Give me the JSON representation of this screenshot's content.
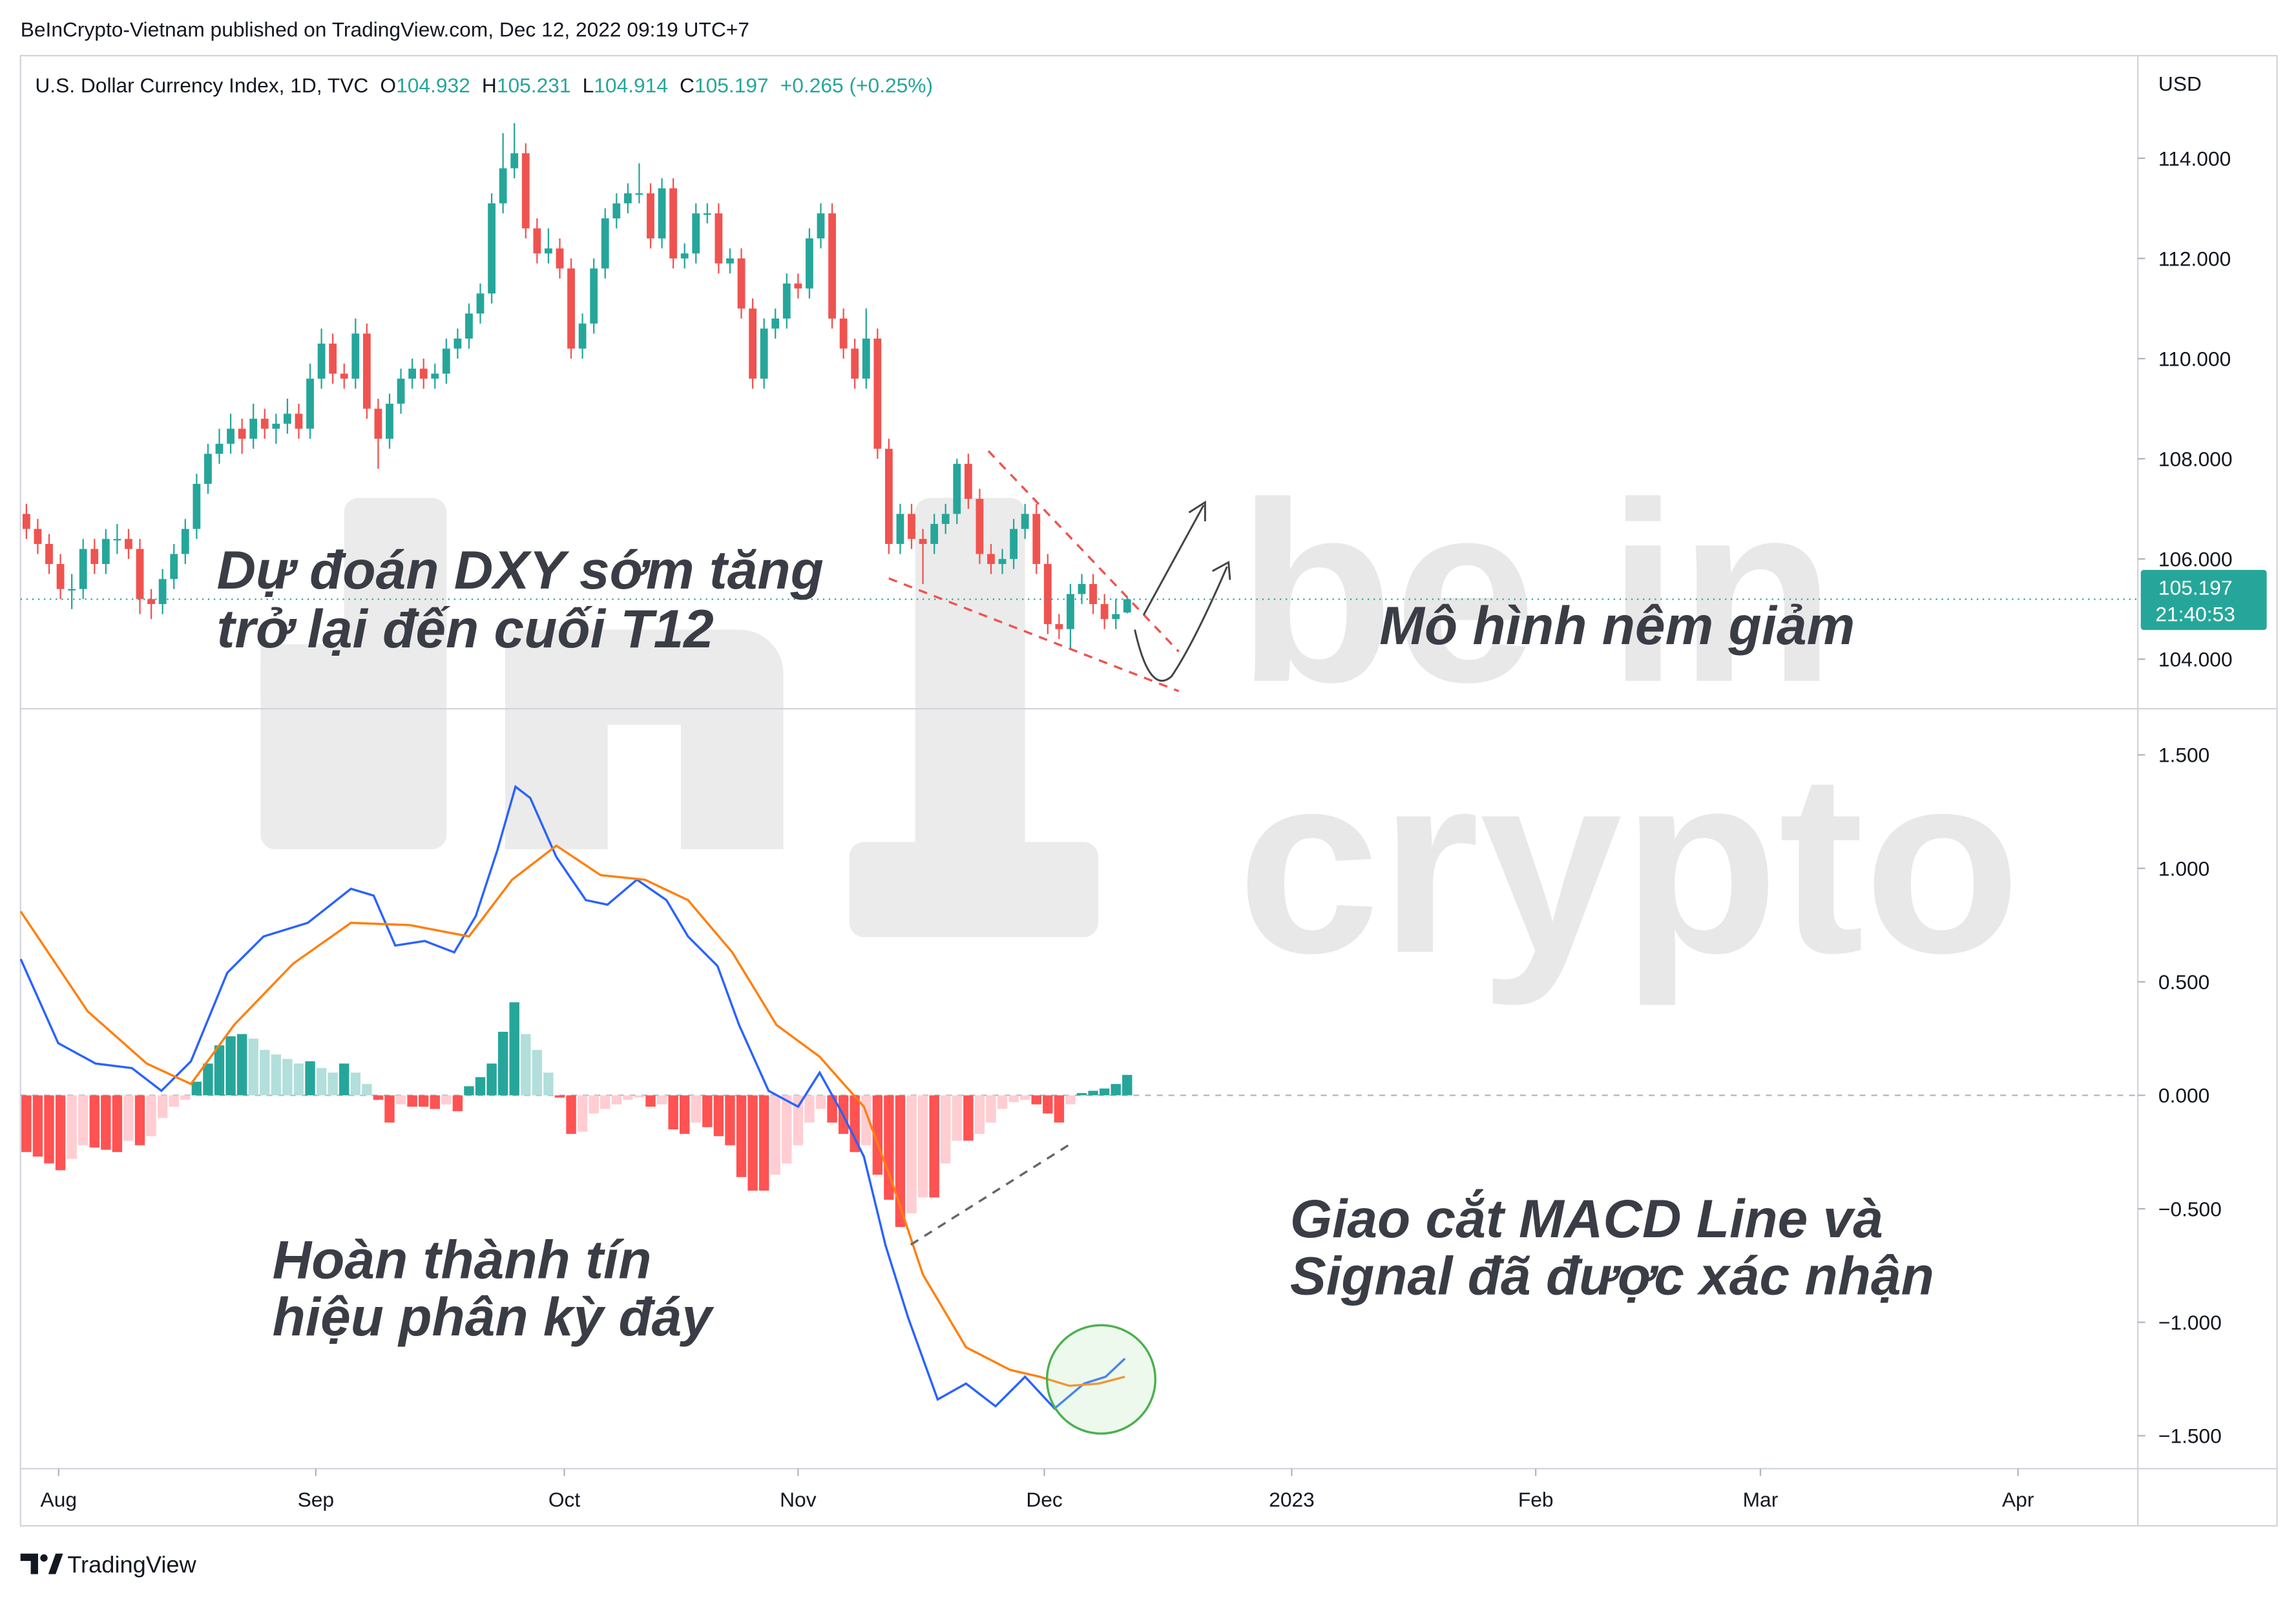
{
  "header": "BeInCrypto-Vietnam published on TradingView.com, Dec 12, 2022 09:19 UTC+7",
  "footer": "TradingView",
  "watermark": [
    "be in",
    "crypto"
  ],
  "annotations": [
    "Dự đoán DXY sớm tăng",
    "trở lại đến cuối T12",
    "Mô hình nêm giảm",
    "Hoàn thành tín",
    "hiệu phân kỳ đáy",
    "Giao cắt MACD Line và",
    "Signal đã được xác nhận"
  ],
  "chart_data": [
    {
      "type": "candlestick",
      "title": "U.S. Dollar Currency Index, 1D, TVC",
      "ohlc_labels": [
        "O",
        "H",
        "L",
        "C"
      ],
      "change": "+0.265 (+0.25%)",
      "currency": "USD",
      "countdown": "21:40:53",
      "colors": {
        "up": "#26a69a",
        "down": "#ef5350"
      },
      "ylim": [
        103.04,
        115.99
      ],
      "yticks": [
        {
          "value": 104,
          "label": "104.000"
        },
        {
          "value": 106,
          "label": "106.000"
        },
        {
          "value": 108,
          "label": "108.000"
        },
        {
          "value": 110,
          "label": "110.000"
        },
        {
          "value": 112,
          "label": "112.000"
        },
        {
          "value": 114,
          "label": "114.000"
        }
      ],
      "candles": [
        [
          106.9,
          107.1,
          106.4,
          106.6
        ],
        [
          106.6,
          106.8,
          106.1,
          106.3
        ],
        [
          106.3,
          106.5,
          105.7,
          105.9
        ],
        [
          105.9,
          106.1,
          105.2,
          105.4
        ],
        [
          105.4,
          105.7,
          105.0,
          105.4
        ],
        [
          105.4,
          106.4,
          105.2,
          106.2
        ],
        [
          106.2,
          106.4,
          105.7,
          105.9
        ],
        [
          105.9,
          106.6,
          105.7,
          106.4
        ],
        [
          106.4,
          106.7,
          106.1,
          106.4
        ],
        [
          106.4,
          106.6,
          106.0,
          106.2
        ],
        [
          106.2,
          106.4,
          104.9,
          105.2
        ],
        [
          105.2,
          105.4,
          104.8,
          105.1
        ],
        [
          105.1,
          105.8,
          104.9,
          105.6
        ],
        [
          105.6,
          106.3,
          105.4,
          106.1
        ],
        [
          106.1,
          106.8,
          105.9,
          106.6
        ],
        [
          106.6,
          107.7,
          106.4,
          107.5
        ],
        [
          107.5,
          108.3,
          107.3,
          108.1
        ],
        [
          108.1,
          108.6,
          107.9,
          108.3
        ],
        [
          108.3,
          108.9,
          108.1,
          108.6
        ],
        [
          108.6,
          108.8,
          108.1,
          108.4
        ],
        [
          108.4,
          109.1,
          108.2,
          108.8
        ],
        [
          108.8,
          109.0,
          108.4,
          108.6
        ],
        [
          108.6,
          108.9,
          108.3,
          108.7
        ],
        [
          108.7,
          109.2,
          108.5,
          108.9
        ],
        [
          108.9,
          109.1,
          108.4,
          108.6
        ],
        [
          108.6,
          109.9,
          108.4,
          109.6
        ],
        [
          109.6,
          110.6,
          109.4,
          110.3
        ],
        [
          110.3,
          110.5,
          109.5,
          109.7
        ],
        [
          109.7,
          109.9,
          109.4,
          109.6
        ],
        [
          109.6,
          110.8,
          109.4,
          110.5
        ],
        [
          110.5,
          110.7,
          108.8,
          109.0
        ],
        [
          109.0,
          109.2,
          107.8,
          108.4
        ],
        [
          108.4,
          109.3,
          108.2,
          109.1
        ],
        [
          109.1,
          109.8,
          108.9,
          109.6
        ],
        [
          109.6,
          110.0,
          109.4,
          109.8
        ],
        [
          109.8,
          110.0,
          109.4,
          109.6
        ],
        [
          109.6,
          109.9,
          109.4,
          109.7
        ],
        [
          109.7,
          110.4,
          109.5,
          110.2
        ],
        [
          110.2,
          110.6,
          110.0,
          110.4
        ],
        [
          110.4,
          111.1,
          110.2,
          110.9
        ],
        [
          110.9,
          111.5,
          110.7,
          111.3
        ],
        [
          111.3,
          113.3,
          111.1,
          113.1
        ],
        [
          113.1,
          114.5,
          112.9,
          113.8
        ],
        [
          113.8,
          114.7,
          113.6,
          114.1
        ],
        [
          114.1,
          114.3,
          112.4,
          112.6
        ],
        [
          112.6,
          112.8,
          111.9,
          112.1
        ],
        [
          112.1,
          112.6,
          111.9,
          112.2
        ],
        [
          112.2,
          112.4,
          111.6,
          111.8
        ],
        [
          111.8,
          112.0,
          110.0,
          110.2
        ],
        [
          110.2,
          110.9,
          110.0,
          110.7
        ],
        [
          110.7,
          112.0,
          110.5,
          111.8
        ],
        [
          111.8,
          113.0,
          111.6,
          112.8
        ],
        [
          112.8,
          113.3,
          112.6,
          113.1
        ],
        [
          113.1,
          113.5,
          112.9,
          113.3
        ],
        [
          113.3,
          113.9,
          113.1,
          113.3
        ],
        [
          113.3,
          113.5,
          112.2,
          112.4
        ],
        [
          112.4,
          113.6,
          112.2,
          113.4
        ],
        [
          113.4,
          113.6,
          111.8,
          112.0
        ],
        [
          112.0,
          112.3,
          111.8,
          112.1
        ],
        [
          112.1,
          113.1,
          111.9,
          112.9
        ],
        [
          112.9,
          113.1,
          112.7,
          112.9
        ],
        [
          112.9,
          113.1,
          111.7,
          111.9
        ],
        [
          111.9,
          112.2,
          111.7,
          112.0
        ],
        [
          112.0,
          112.2,
          110.8,
          111.0
        ],
        [
          111.0,
          111.2,
          109.4,
          109.6
        ],
        [
          109.6,
          110.8,
          109.4,
          110.6
        ],
        [
          110.6,
          111.0,
          110.4,
          110.8
        ],
        [
          110.8,
          111.7,
          110.6,
          111.5
        ],
        [
          111.5,
          111.7,
          111.2,
          111.4
        ],
        [
          111.4,
          112.6,
          111.2,
          112.4
        ],
        [
          112.4,
          113.1,
          112.2,
          112.9
        ],
        [
          112.9,
          113.1,
          110.6,
          110.8
        ],
        [
          110.8,
          111.0,
          110.0,
          110.2
        ],
        [
          110.2,
          110.4,
          109.4,
          109.6
        ],
        [
          109.6,
          111.0,
          109.4,
          110.4
        ],
        [
          110.4,
          110.6,
          108.0,
          108.2
        ],
        [
          108.2,
          108.4,
          106.1,
          106.3
        ],
        [
          106.3,
          107.1,
          106.1,
          106.9
        ],
        [
          106.9,
          107.1,
          106.2,
          106.4
        ],
        [
          106.4,
          106.6,
          105.5,
          106.3
        ],
        [
          106.3,
          106.9,
          106.1,
          106.7
        ],
        [
          106.7,
          107.1,
          106.5,
          106.9
        ],
        [
          106.9,
          108.0,
          106.7,
          107.9
        ],
        [
          107.9,
          108.1,
          107.0,
          107.2
        ],
        [
          107.2,
          107.4,
          105.9,
          106.1
        ],
        [
          106.1,
          106.3,
          105.7,
          105.9
        ],
        [
          105.9,
          106.2,
          105.7,
          106.0
        ],
        [
          106.0,
          106.8,
          105.8,
          106.6
        ],
        [
          106.6,
          107.1,
          106.4,
          106.9
        ],
        [
          106.9,
          107.1,
          105.7,
          105.9
        ],
        [
          105.9,
          106.1,
          104.5,
          104.7
        ],
        [
          104.7,
          104.9,
          104.4,
          104.6
        ],
        [
          104.6,
          105.5,
          104.2,
          105.3
        ],
        [
          105.3,
          105.7,
          105.1,
          105.5
        ],
        [
          105.5,
          105.7,
          104.9,
          105.1
        ],
        [
          105.1,
          105.3,
          104.6,
          104.8
        ],
        [
          104.8,
          105.2,
          104.6,
          104.9
        ],
        [
          104.932,
          105.231,
          104.914,
          105.197
        ]
      ]
    },
    {
      "type": "macd",
      "xlim": [
        -0.52,
        186.06
      ],
      "xticks": [
        {
          "value": 2.84,
          "label": "Aug"
        },
        {
          "value": 25.5,
          "label": "Sep"
        },
        {
          "value": 47.4,
          "label": "Oct"
        },
        {
          "value": 68,
          "label": "Nov"
        },
        {
          "value": 89.7,
          "label": "Dec"
        },
        {
          "value": 111.5,
          "label": "2023"
        },
        {
          "value": 133,
          "label": "Feb"
        },
        {
          "value": 152.8,
          "label": "Mar"
        },
        {
          "value": 175.5,
          "label": "Apr"
        }
      ],
      "ylim": [
        -1.645,
        1.684
      ],
      "yticks": [
        {
          "value": -1.5,
          "label": "−1.500"
        },
        {
          "value": -1,
          "label": "−1.000"
        },
        {
          "value": -0.5,
          "label": "−0.500"
        },
        {
          "value": 0,
          "label": "0.000"
        },
        {
          "value": 0.5,
          "label": "0.500"
        },
        {
          "value": 1,
          "label": "1.000"
        },
        {
          "value": 1.5,
          "label": "1.500"
        }
      ],
      "histogram_colors": {
        "up_grow": "#26a69a",
        "up_fall": "#b2dfdb",
        "down_grow": "#ff5252",
        "down_fall": "#ffcdd2"
      },
      "histogram": [
        -0.25,
        -0.27,
        -0.3,
        -0.33,
        -0.28,
        -0.22,
        -0.23,
        -0.24,
        -0.25,
        -0.2,
        -0.22,
        -0.18,
        -0.1,
        -0.05,
        -0.02,
        0.06,
        0.14,
        0.22,
        0.26,
        0.27,
        0.25,
        0.2,
        0.18,
        0.16,
        0.14,
        0.15,
        0.12,
        0.1,
        0.14,
        0.1,
        0.05,
        -0.02,
        -0.12,
        -0.04,
        -0.05,
        -0.05,
        -0.06,
        -0.04,
        -0.07,
        0.04,
        0.08,
        0.14,
        0.28,
        0.41,
        0.27,
        0.2,
        0.1,
        -0.01,
        -0.17,
        -0.16,
        -0.08,
        -0.06,
        -0.04,
        -0.02,
        -0.01,
        -0.05,
        -0.04,
        -0.15,
        -0.17,
        -0.12,
        -0.14,
        -0.18,
        -0.22,
        -0.36,
        -0.42,
        -0.42,
        -0.35,
        -0.3,
        -0.22,
        -0.12,
        -0.06,
        -0.12,
        -0.17,
        -0.25,
        -0.22,
        -0.35,
        -0.46,
        -0.58,
        -0.52,
        -0.45,
        -0.45,
        -0.3,
        -0.2,
        -0.2,
        -0.17,
        -0.12,
        -0.06,
        -0.03,
        -0.02,
        -0.04,
        -0.08,
        -0.12,
        -0.04,
        0.01,
        0.02,
        0.03,
        0.05,
        0.09
      ],
      "series": [
        {
          "color": "#2962ff",
          "x": [
            -0.5,
            2.8,
            6.1,
            9.3,
            11.9,
            14.5,
            17.7,
            20.9,
            24.8,
            28.6,
            30.6,
            32.5,
            35.1,
            37.7,
            39.6,
            41.5,
            43.1,
            44.4,
            46.7,
            49.3,
            51.2,
            53.8,
            56.4,
            58.3,
            60.9,
            62.8,
            65.4,
            68.0,
            69.9,
            71.9,
            73.8,
            75.7,
            77.7,
            80.3,
            82.8,
            85.4,
            88.0,
            90.6,
            93.2,
            95.1,
            96.8
          ],
          "values": [
            0.6,
            0.23,
            0.14,
            0.12,
            0.02,
            0.15,
            0.54,
            0.7,
            0.76,
            0.91,
            0.88,
            0.66,
            0.68,
            0.63,
            0.79,
            1.08,
            1.36,
            1.31,
            1.05,
            0.86,
            0.84,
            0.95,
            0.86,
            0.7,
            0.57,
            0.31,
            0.02,
            -0.05,
            0.1,
            -0.08,
            -0.27,
            -0.66,
            -0.98,
            -1.34,
            -1.27,
            -1.37,
            -1.24,
            -1.38,
            -1.27,
            -1.24,
            -1.16
          ]
        },
        {
          "color": "#ff7f0e",
          "x": [
            -0.5,
            5.4,
            10.6,
            14.5,
            18.3,
            23.5,
            28.6,
            33.8,
            39.0,
            42.8,
            46.7,
            50.6,
            54.5,
            58.3,
            62.2,
            66.1,
            69.9,
            73.8,
            76.4,
            79.0,
            82.8,
            86.7,
            89.3,
            91.9,
            94.5,
            96.8
          ],
          "values": [
            0.81,
            0.37,
            0.14,
            0.05,
            0.31,
            0.58,
            0.76,
            0.75,
            0.7,
            0.95,
            1.1,
            0.97,
            0.95,
            0.86,
            0.63,
            0.31,
            0.17,
            -0.05,
            -0.4,
            -0.79,
            -1.11,
            -1.21,
            -1.24,
            -1.28,
            -1.27,
            -1.24
          ]
        }
      ]
    }
  ]
}
